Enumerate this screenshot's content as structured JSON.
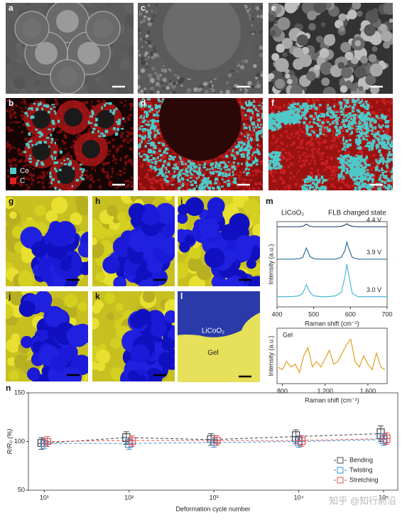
{
  "panels": {
    "labels": [
      "a",
      "b",
      "c",
      "d",
      "e",
      "f",
      "g",
      "h",
      "i",
      "j",
      "k",
      "l",
      "m",
      "n"
    ],
    "legend": [
      {
        "name": "Co",
        "color": "#4ec9c9"
      },
      {
        "name": "C",
        "color": "#e0201e"
      }
    ],
    "l_labels": [
      "LiCoO₂",
      "Gel"
    ]
  },
  "watermark": "知乎 @知行前沿",
  "chart_data": [
    {
      "type": "line",
      "title": "LiCoO₂",
      "annotation": "FLB charged state",
      "x_label": "Raman shift (cm⁻¹)",
      "y_label": "Intensity (a.u.)",
      "x": [
        400,
        420,
        440,
        460,
        470,
        480,
        490,
        500,
        520,
        540,
        560,
        575,
        585,
        590,
        595,
        605,
        620,
        640,
        660,
        680,
        700
      ],
      "xlim": [
        400,
        700
      ],
      "xticks": [
        400,
        500,
        600,
        700
      ],
      "ylim": [
        0,
        10
      ],
      "series": [
        {
          "name": "4.4 V",
          "color": "#2c4a6e",
          "values": [
            9.4,
            9.4,
            9.4,
            9.4,
            9.45,
            9.7,
            9.45,
            9.4,
            9.4,
            9.4,
            9.4,
            9.45,
            9.6,
            9.75,
            9.6,
            9.45,
            9.4,
            9.4,
            9.4,
            9.4,
            9.4
          ]
        },
        {
          "name": "3.9 V",
          "color": "#2a6f9a",
          "values": [
            5.6,
            5.6,
            5.6,
            5.65,
            5.8,
            6.9,
            5.9,
            5.65,
            5.6,
            5.6,
            5.6,
            5.8,
            6.6,
            7.6,
            6.9,
            5.8,
            5.6,
            5.6,
            5.6,
            5.6,
            5.6
          ]
        },
        {
          "name": "3.0 V",
          "color": "#4bb8d6",
          "values": [
            1.2,
            1.2,
            1.2,
            1.3,
            1.6,
            2.6,
            1.7,
            1.3,
            1.2,
            1.2,
            1.3,
            1.7,
            3.5,
            5.0,
            3.8,
            1.6,
            1.2,
            1.2,
            1.2,
            1.2,
            1.2
          ]
        }
      ]
    },
    {
      "type": "line",
      "x_label": "Raman shift (cm⁻¹)",
      "y_label": "Intensity (a.u.)",
      "x": [
        760,
        800,
        840,
        880,
        920,
        960,
        1000,
        1040,
        1080,
        1120,
        1160,
        1200,
        1240,
        1280,
        1320,
        1360,
        1400,
        1440,
        1480,
        1520,
        1560,
        1600,
        1640,
        1680,
        1720,
        1760
      ],
      "xlim": [
        750,
        1780
      ],
      "xticks": [
        800,
        {
          "value": 1200,
          "label": "1,200"
        },
        {
          "value": 1600,
          "label": "1,600"
        }
      ],
      "ylim": [
        0,
        10
      ],
      "series": [
        {
          "name": "Gel",
          "color": "#e0a020",
          "values": [
            3,
            2.5,
            4,
            3,
            3.5,
            2,
            5,
            6.5,
            3,
            4,
            3,
            4.5,
            6,
            3.5,
            4,
            5.5,
            7,
            8,
            4,
            3,
            5,
            3.5,
            2.5,
            5.5,
            3,
            2.5
          ]
        }
      ]
    },
    {
      "type": "box",
      "x_label": "Deformation cycle number",
      "y_label": "R/R₀ (%)",
      "log_x": true,
      "x": [
        10,
        100,
        1000,
        10000,
        100000
      ],
      "xlim": [
        6.5,
        147000
      ],
      "xticks": [
        {
          "value": 10,
          "label": "10¹"
        },
        {
          "value": 100,
          "label": "10²"
        },
        {
          "value": 1000,
          "label": "10³"
        },
        {
          "value": 10000,
          "label": "10⁴"
        },
        {
          "value": 100000,
          "label": "10⁵"
        }
      ],
      "ylim": [
        50,
        150
      ],
      "yticks": [
        50,
        100,
        150
      ],
      "legend": "lower right",
      "series": [
        {
          "name": "Bending",
          "color": "#444444",
          "values": [
            98,
            104,
            102,
            105,
            108
          ],
          "q1": [
            95,
            100,
            99,
            100,
            103
          ],
          "q3": [
            102,
            108,
            106,
            110,
            113
          ],
          "low": [
            92,
            97,
            96,
            98,
            100
          ],
          "high": [
            104,
            110,
            108,
            112,
            116
          ]
        },
        {
          "name": "Twisting",
          "color": "#3a8fd0",
          "values": [
            98,
            98,
            99,
            100,
            102
          ],
          "q1": [
            95,
            94,
            96,
            96,
            98
          ],
          "q3": [
            101,
            102,
            102,
            104,
            106
          ],
          "low": [
            93,
            92,
            94,
            94,
            96
          ],
          "high": [
            103,
            104,
            104,
            106,
            108
          ]
        },
        {
          "name": "Stretching",
          "color": "#e05050",
          "values": [
            100,
            101,
            101,
            101,
            103
          ],
          "q1": [
            97,
            97,
            98,
            97,
            99
          ],
          "q3": [
            103,
            104,
            104,
            104,
            107
          ],
          "low": [
            95,
            95,
            96,
            95,
            97
          ],
          "high": [
            105,
            106,
            106,
            106,
            109
          ]
        }
      ]
    }
  ]
}
